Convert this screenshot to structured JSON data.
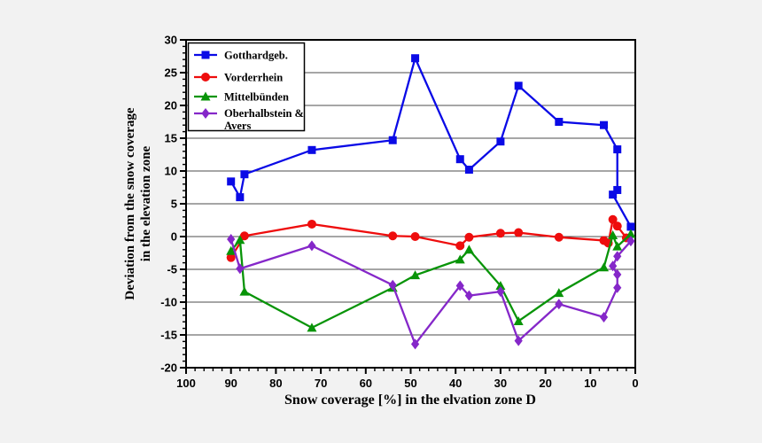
{
  "page": {
    "background": "#f2f2f2",
    "plot_background": "#ffffff",
    "frame_color": "#000000"
  },
  "chart_data": {
    "type": "line",
    "title": "",
    "xlabel": "Snow coverage [%] in the elvation zone D",
    "ylabel_lines": [
      "Deviation from the snow coverage",
      "in the elevation zone"
    ],
    "x_axis": {
      "min": 0,
      "max": 100,
      "reversed": true,
      "major_tick_step": 10,
      "minor_tick_step": 2,
      "tick_labels": [
        "100",
        "90",
        "80",
        "70",
        "60",
        "50",
        "40",
        "30",
        "20",
        "10",
        "0"
      ]
    },
    "y_axis": {
      "min": -20,
      "max": 30,
      "major_tick_step": 5,
      "minor_tick_step": 1,
      "tick_labels": [
        "-20",
        "-15",
        "-10",
        "-5",
        "0",
        "5",
        "10",
        "15",
        "20",
        "25",
        "30"
      ]
    },
    "grid": {
      "horizontal_major": true,
      "vertical": false,
      "color": "#4d4d4d"
    },
    "legend": {
      "position": "top-left",
      "background": "#ffffff",
      "border_color": "#000000"
    },
    "series": [
      {
        "id": "gotthardgeb",
        "name": "Gotthardgeb.",
        "legend_lines": [
          "Gotthardgeb."
        ],
        "color": "#0a0ae6",
        "marker": "square",
        "points": [
          [
            90,
            8.4
          ],
          [
            88,
            6.0
          ],
          [
            87,
            9.5
          ],
          [
            72,
            13.2
          ],
          [
            54,
            14.7
          ],
          [
            49,
            27.2
          ],
          [
            39,
            11.8
          ],
          [
            37,
            10.2
          ],
          [
            30,
            14.5
          ],
          [
            26,
            23.0
          ],
          [
            17,
            17.5
          ],
          [
            7,
            17.0
          ],
          [
            4,
            13.3
          ],
          [
            4,
            7.1
          ],
          [
            5,
            6.4
          ],
          [
            1,
            1.5
          ]
        ]
      },
      {
        "id": "vorderrhein",
        "name": "Vorderrhein",
        "legend_lines": [
          "Vorderrhein"
        ],
        "color": "#ee0d0d",
        "marker": "circle",
        "points": [
          [
            90,
            -3.2
          ],
          [
            87,
            0.1
          ],
          [
            72,
            1.9
          ],
          [
            54,
            0.1
          ],
          [
            49,
            0.0
          ],
          [
            39,
            -1.4
          ],
          [
            37,
            -0.1
          ],
          [
            30,
            0.5
          ],
          [
            26,
            0.6
          ],
          [
            17,
            -0.1
          ],
          [
            7,
            -0.6
          ],
          [
            6,
            -1.0
          ],
          [
            5,
            2.6
          ],
          [
            4,
            1.6
          ],
          [
            2,
            -0.2
          ]
        ]
      },
      {
        "id": "mittelbuenden",
        "name": "Mittelbünden",
        "legend_lines": [
          "Mittelbünden"
        ],
        "color": "#089408",
        "marker": "triangle",
        "points": [
          [
            90,
            -2.2
          ],
          [
            88,
            -0.5
          ],
          [
            87,
            -8.4
          ],
          [
            72,
            -13.9
          ],
          [
            54,
            -7.8
          ],
          [
            49,
            -5.9
          ],
          [
            39,
            -3.5
          ],
          [
            37,
            -2.0
          ],
          [
            30,
            -7.5
          ],
          [
            26,
            -12.9
          ],
          [
            17,
            -8.6
          ],
          [
            7,
            -4.7
          ],
          [
            5,
            0.2
          ],
          [
            4,
            -1.5
          ],
          [
            1,
            0.4
          ]
        ]
      },
      {
        "id": "oberhalbstein-avers",
        "name": "Oberhalbstein & Avers",
        "legend_lines": [
          "Oberhalbstein &",
          "Avers"
        ],
        "color": "#8527c9",
        "marker": "diamond",
        "points": [
          [
            90,
            -0.4
          ],
          [
            88,
            -4.9
          ],
          [
            72,
            -1.4
          ],
          [
            54,
            -7.4
          ],
          [
            49,
            -16.4
          ],
          [
            39,
            -7.5
          ],
          [
            37,
            -9.0
          ],
          [
            30,
            -8.4
          ],
          [
            26,
            -15.9
          ],
          [
            17,
            -10.3
          ],
          [
            7,
            -12.3
          ],
          [
            4,
            -7.8
          ],
          [
            4,
            -5.8
          ],
          [
            5,
            -4.5
          ],
          [
            4,
            -3.0
          ],
          [
            1,
            -0.7
          ]
        ]
      }
    ]
  }
}
